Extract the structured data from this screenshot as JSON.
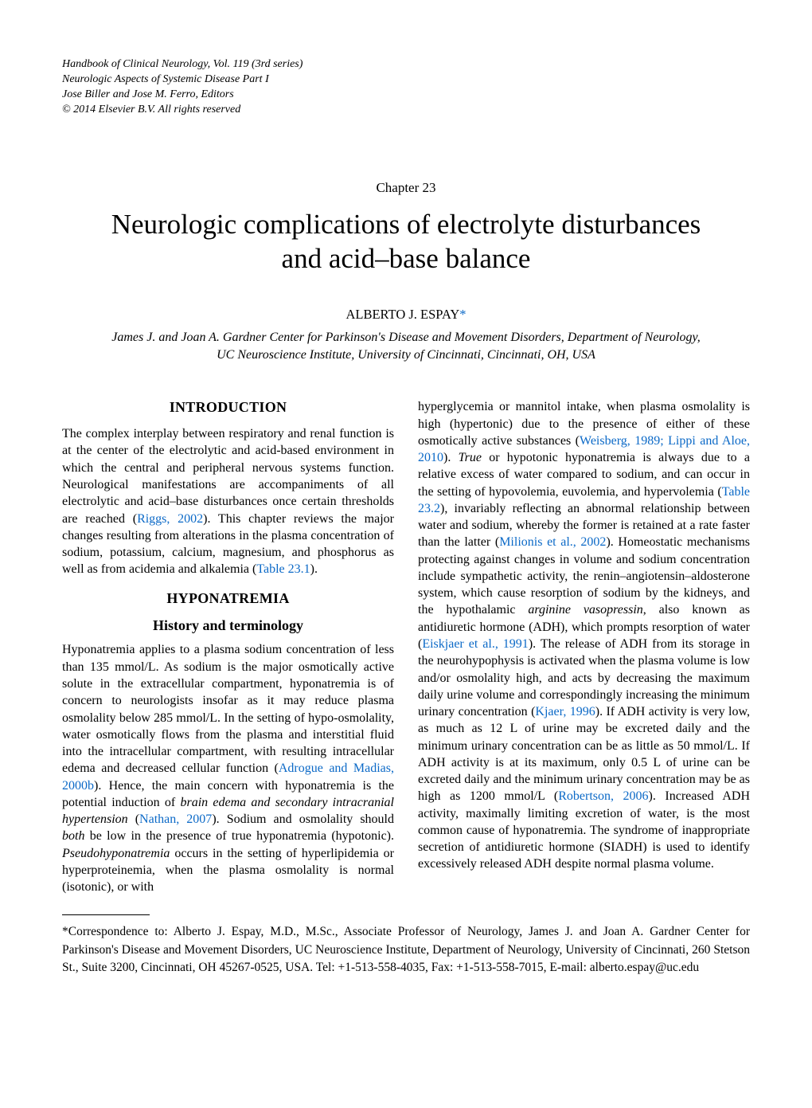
{
  "header": {
    "line1": "Handbook of Clinical Neurology, Vol. 119 (3rd series)",
    "line2": "Neurologic Aspects of Systemic Disease Part I",
    "line3": "Jose Biller and Jose M. Ferro, Editors",
    "line4": "© 2014 Elsevier B.V. All rights reserved"
  },
  "chapter": {
    "label": "Chapter 23",
    "title_line1": "Neurologic complications of electrolyte disturbances",
    "title_line2": "and acid–base balance"
  },
  "author": {
    "name": "ALBERTO J. ESPAY",
    "marker": "*"
  },
  "affiliation": {
    "line1": "James J. and Joan A. Gardner Center for Parkinson's Disease and Movement Disorders, Department of Neurology,",
    "line2": "UC Neuroscience Institute, University of Cincinnati, Cincinnati, OH, USA"
  },
  "sections": {
    "introduction_heading": "INTRODUCTION",
    "hyponatremia_heading": "HYPONATREMIA",
    "history_heading": "History and terminology"
  },
  "left_column": {
    "intro_p1a": "The complex interplay between respiratory and renal function is at the center of the electrolytic and acid-based environment in which the central and peripheral nervous systems function. Neurological manifestations are accompaniments of all electrolytic and acid–base disturbances once certain thresholds are reached (",
    "intro_ref1": "Riggs, 2002",
    "intro_p1b": "). This chapter reviews the major changes resulting from alterations in the plasma concentration of sodium, potassium, calcium, magnesium, and phosphorus as well as from acidemia and alkalemia (",
    "intro_ref2": "Table 23.1",
    "intro_p1c": ").",
    "hist_p1a": "Hyponatremia applies to a plasma sodium concentration of less than 135 mmol/L. As sodium is the major osmotically active solute in the extracellular compartment, hyponatremia is of concern to neurologists insofar as it may reduce plasma osmolality below 285 mmol/L. In the setting of hypo-osmolality, water osmotically flows from the plasma and interstitial fluid into the intracellular compartment, with resulting intracellular edema and decreased cellular function (",
    "hist_ref1": "Adrogue and Madias, 2000b",
    "hist_p1b": "). Hence, the main concern with hyponatremia is the potential induction of ",
    "hist_em1": "brain edema and secondary intracranial hypertension",
    "hist_p1c": " (",
    "hist_ref2": "Nathan, 2007",
    "hist_p1d": "). Sodium and osmolality should ",
    "hist_em2": "both",
    "hist_p1e": " be low in the presence of true hyponatremia (hypotonic). ",
    "hist_em3": "Pseudohyponatremia",
    "hist_p1f": " occurs in the setting of hyperlipidemia or hyperproteinemia, when the plasma osmolality is normal (isotonic), or with"
  },
  "right_column": {
    "p1a": "hyperglycemia or mannitol intake, when plasma osmolality is high (hypertonic) due to the presence of either of these osmotically active substances (",
    "ref1": "Weisberg, 1989; Lippi and Aloe, 2010",
    "p1b": "). ",
    "em1": "True",
    "p1c": " or hypotonic hyponatremia is always due to a relative excess of water compared to sodium, and can occur in the setting of hypovolemia, euvolemia, and hypervolemia (",
    "ref2": "Table 23.2",
    "p1d": "), invariably reflecting an abnormal relationship between water and sodium, whereby the former is retained at a rate faster than the latter (",
    "ref3": "Milionis et al., 2002",
    "p1e": "). Homeostatic mechanisms protecting against changes in volume and sodium concentration include sympathetic activity, the renin–angiotensin–aldosterone system, which cause resorption of sodium by the kidneys, and the hypothalamic ",
    "em2": "arginine vasopressin",
    "p1f": ", also known as antidiuretic hormone (ADH), which prompts resorption of water (",
    "ref4": "Eiskjaer et al., 1991",
    "p1g": "). The release of ADH from its storage in the neurohypophysis is activated when the plasma volume is low and/or osmolality high, and acts by decreasing the maximum daily urine volume and correspondingly increasing the minimum urinary concentration (",
    "ref5": "Kjaer, 1996",
    "p1h": "). If ADH activity is very low, as much as 12 L of urine may be excreted daily and the minimum urinary concentration can be as little as 50 mmol/L. If ADH activity is at its maximum, only 0.5 L of urine can be excreted daily and the minimum urinary concentration may be as high as 1200 mmol/L (",
    "ref6": "Robertson, 2006",
    "p1i": "). Increased ADH activity, maximally limiting excretion of water, is the most common cause of hyponatremia. The syndrome of inappropriate secretion of antidiuretic hormone (SIADH) is used to identify excessively released ADH despite normal plasma volume."
  },
  "footnote": {
    "marker": "*",
    "text_a": "Correspondence to: Alberto J. Espay, M.D., M.Sc., Associate Professor of Neurology, James J. and Joan A. Gardner Center for Parkinson's Disease and Movement Disorders, UC Neuroscience Institute, Department of Neurology, University of Cincinnati, 260 Stetson St., Suite 3200, Cincinnati, OH 45267-0525, USA. Tel: +1-513-558-4035, Fax: +1-513-558-7015, E-mail: alberto.espay@uc.edu"
  },
  "colors": {
    "text": "#000000",
    "background": "#ffffff",
    "link": "#0b69c7"
  },
  "typography": {
    "body_family": "Times New Roman",
    "body_size_pt": 12,
    "title_size_pt": 26,
    "heading_size_pt": 13
  }
}
